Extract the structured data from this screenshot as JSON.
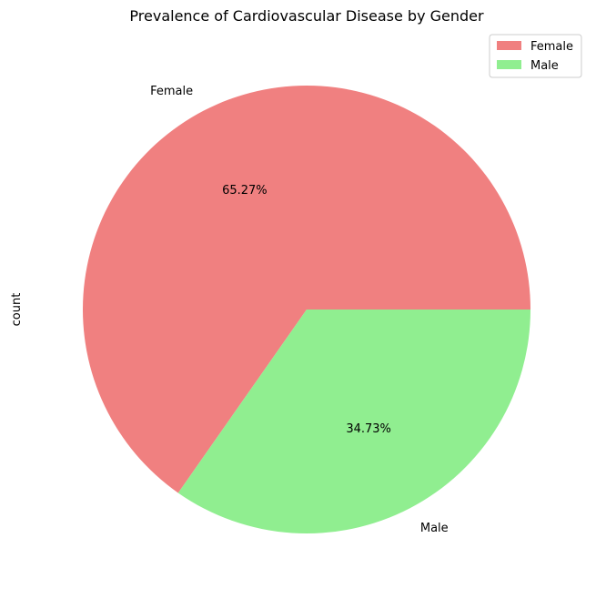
{
  "chart_data": {
    "type": "pie",
    "title": "Prevalence of Cardiovascular Disease by Gender",
    "ylabel": "count",
    "categories": [
      "Female",
      "Male"
    ],
    "values": [
      65.27,
      34.73
    ],
    "value_labels": [
      "65.27%",
      "34.73%"
    ],
    "colors": [
      "#f08080",
      "#90ee90"
    ],
    "legend": {
      "entries": [
        "Female",
        "Male"
      ],
      "placement": "top-right"
    }
  }
}
